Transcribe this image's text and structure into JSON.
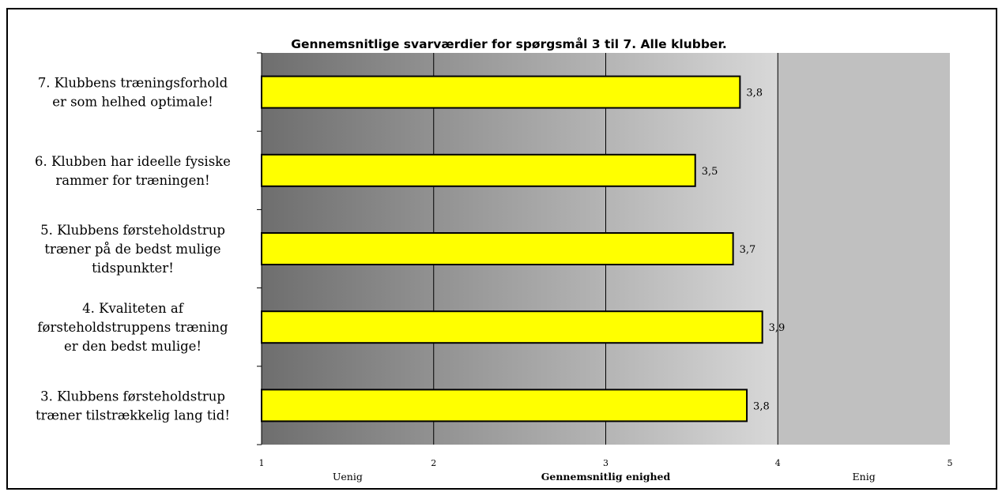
{
  "chart_data": {
    "type": "bar",
    "orientation": "horizontal",
    "title": "Gennemsnitlige svarværdier for spørgsmål 3 til 7. Alle klubber.",
    "xlabel": "Gennemsnitlig enighed",
    "xlim": [
      1,
      5
    ],
    "x_ticks": [
      "1",
      "2",
      "3",
      "4",
      "5"
    ],
    "axis_words": [
      {
        "label": "Uenig",
        "at": 1.5
      },
      {
        "label": "Enig",
        "at": 4.5
      }
    ],
    "categories": [
      [
        "7. Klubbens træningsforhold",
        "er som helhed  optimale!"
      ],
      [
        "6. Klubben har ideelle fysiske",
        "rammer for træningen!"
      ],
      [
        "5. Klubbens førsteholdstrup",
        "træner på de bedst mulige",
        "tidspunkter!"
      ],
      [
        "4. Kvaliteten af",
        "førsteholdstruppens træning",
        "er den bedst mulige!"
      ],
      [
        "3. Klubbens førsteholdstrup",
        "træner tilstrækkelig lang tid!"
      ]
    ],
    "values": [
      3.78,
      3.52,
      3.74,
      3.91,
      3.82
    ],
    "data_labels": [
      "3,8",
      "3,5",
      "3,7",
      "3,9",
      "3,8"
    ],
    "colors": {
      "bar_fill": "#ffff00",
      "bar_stroke": "#000000",
      "band_start": "#6e6e6e",
      "band_end": "#d8d8d8",
      "band_upper": "#c0c0c0"
    },
    "grid": true,
    "legend": "none"
  }
}
